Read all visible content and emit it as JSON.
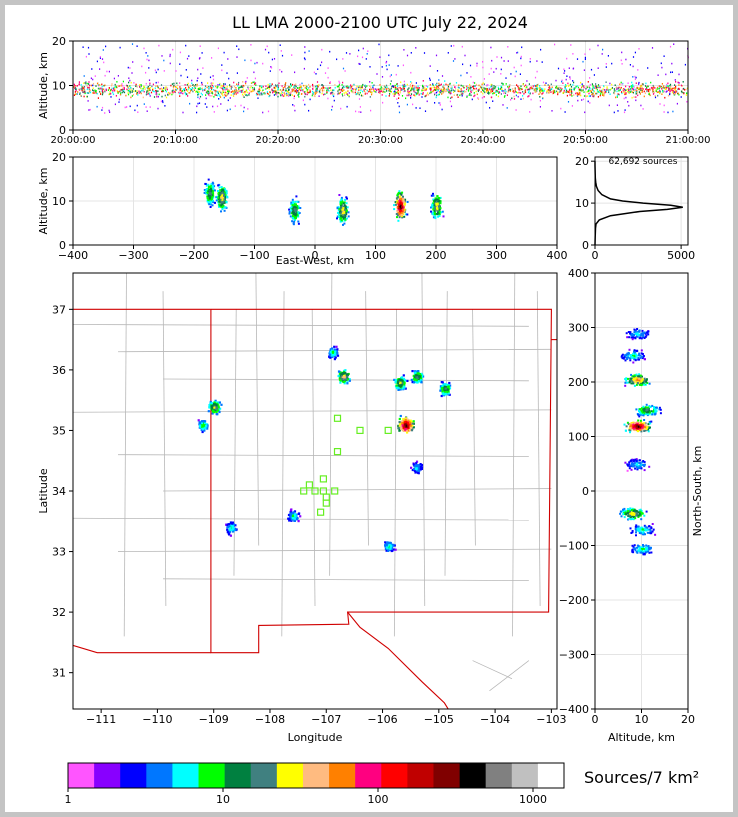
{
  "title": "LL LMA 2000-2100 UTC July 22, 2024",
  "source_count_label": "62,692 sources",
  "colorbar_units": "Sources/7 km²",
  "colors": {
    "map_border": "#d00000",
    "county_lines": "#b8b8b8",
    "station_marker": "#66ee22",
    "frame": "#c4c4c4"
  },
  "chart_data": [
    {
      "id": "time-altitude",
      "type": "heatmap",
      "xlabel": "",
      "ylabel": "Altitude, km",
      "x_ticks": [
        "20:00:00",
        "20:10:00",
        "20:20:00",
        "20:30:00",
        "20:40:00",
        "20:50:00",
        "21:00:00"
      ],
      "xlim_minutes": [
        0,
        60
      ],
      "y_ticks": [
        0,
        10,
        20
      ],
      "ylim": [
        0,
        20
      ],
      "core_altitude_km": [
        8,
        11
      ],
      "grid": true
    },
    {
      "id": "eastwest-altitude",
      "type": "heatmap",
      "xlabel": "East-West, km",
      "ylabel": "Altitude, km",
      "x_ticks": [
        -400,
        -300,
        -200,
        -100,
        0,
        100,
        200,
        300,
        400
      ],
      "xlim": [
        -400,
        400
      ],
      "y_ticks": [
        0,
        10,
        20
      ],
      "ylim": [
        0,
        20
      ],
      "clusters": [
        {
          "x": -175,
          "alt": 12,
          "level": 0.5
        },
        {
          "x": -155,
          "alt": 11,
          "level": 0.6
        },
        {
          "x": -35,
          "alt": 8,
          "level": 0.5
        },
        {
          "x": 45,
          "alt": 8,
          "level": 0.6
        },
        {
          "x": 140,
          "alt": 9,
          "level": 1.0
        },
        {
          "x": 200,
          "alt": 9,
          "level": 0.6
        }
      ],
      "grid": true
    },
    {
      "id": "altitude-histogram",
      "type": "line",
      "xlabel": "",
      "ylabel": "",
      "x_ticks": [
        0,
        5000
      ],
      "xlim": [
        0,
        5400
      ],
      "y_ticks": [
        0,
        10,
        20
      ],
      "ylim": [
        0,
        21
      ],
      "altitude_km": [
        0,
        2,
        4,
        5,
        6,
        7,
        8,
        8.5,
        9,
        9.5,
        10,
        10.5,
        11,
        12,
        13,
        14,
        15,
        16,
        17,
        18,
        19,
        20
      ],
      "sources": [
        0,
        10,
        30,
        60,
        250,
        900,
        2600,
        4200,
        5100,
        4400,
        2800,
        1600,
        900,
        400,
        180,
        80,
        40,
        20,
        10,
        5,
        2,
        0
      ],
      "grid": true
    },
    {
      "id": "plan-view",
      "type": "heatmap",
      "xlabel": "Longitude",
      "ylabel": "Latitude",
      "x_ticks": [
        -111,
        -110,
        -109,
        -108,
        -107,
        -106,
        -105,
        -104,
        -103
      ],
      "xlim": [
        -111.5,
        -102.9
      ],
      "y_ticks": [
        31,
        32,
        33,
        34,
        35,
        36,
        37
      ],
      "ylim": [
        30.4,
        37.6
      ],
      "clusters": [
        {
          "lon": -109.0,
          "lat": 35.4,
          "level": 0.55
        },
        {
          "lon": -109.2,
          "lat": 35.1,
          "level": 0.4
        },
        {
          "lon": -108.7,
          "lat": 33.4,
          "level": 0.35
        },
        {
          "lon": -107.6,
          "lat": 33.6,
          "level": 0.35
        },
        {
          "lon": -106.7,
          "lat": 35.9,
          "level": 0.6
        },
        {
          "lon": -106.9,
          "lat": 36.3,
          "level": 0.35
        },
        {
          "lon": -105.6,
          "lat": 35.1,
          "level": 1.0
        },
        {
          "lon": -105.7,
          "lat": 35.8,
          "level": 0.55
        },
        {
          "lon": -105.4,
          "lat": 35.9,
          "level": 0.5
        },
        {
          "lon": -104.9,
          "lat": 35.7,
          "level": 0.5
        },
        {
          "lon": -105.9,
          "lat": 33.1,
          "level": 0.35
        },
        {
          "lon": -105.4,
          "lat": 34.4,
          "level": 0.3
        }
      ],
      "stations": [
        {
          "lon": -106.8,
          "lat": 35.2
        },
        {
          "lon": -106.4,
          "lat": 35.0
        },
        {
          "lon": -105.9,
          "lat": 35.0
        },
        {
          "lon": -106.8,
          "lat": 34.65
        },
        {
          "lon": -107.05,
          "lat": 34.2
        },
        {
          "lon": -107.3,
          "lat": 34.1
        },
        {
          "lon": -107.4,
          "lat": 34.0
        },
        {
          "lon": -107.2,
          "lat": 34.0
        },
        {
          "lon": -107.05,
          "lat": 34.0
        },
        {
          "lon": -106.85,
          "lat": 34.0
        },
        {
          "lon": -107.0,
          "lat": 33.8
        },
        {
          "lon": -107.1,
          "lat": 33.65
        },
        {
          "lon": -107.0,
          "lat": 33.9
        }
      ],
      "grid": false
    },
    {
      "id": "altitude-northsouth",
      "type": "heatmap",
      "xlabel": "Altitude, km",
      "ylabel": "North-South, km",
      "x_ticks": [
        0,
        10,
        20
      ],
      "xlim": [
        0,
        20
      ],
      "y_ticks": [
        -400,
        -300,
        -200,
        -100,
        0,
        100,
        200,
        300,
        400
      ],
      "ylim": [
        -400,
        400
      ],
      "clusters": [
        {
          "y": 290,
          "alt": 9,
          "level": 0.3
        },
        {
          "y": 250,
          "alt": 8,
          "level": 0.35
        },
        {
          "y": 205,
          "alt": 9,
          "level": 0.7
        },
        {
          "y": 150,
          "alt": 11,
          "level": 0.5
        },
        {
          "y": 120,
          "alt": 9,
          "level": 1.0
        },
        {
          "y": 50,
          "alt": 9,
          "level": 0.3
        },
        {
          "y": -40,
          "alt": 8,
          "level": 0.6
        },
        {
          "y": -70,
          "alt": 10,
          "level": 0.35
        },
        {
          "y": -105,
          "alt": 10,
          "level": 0.35
        }
      ],
      "grid": true
    },
    {
      "id": "colorbar",
      "type": "heatmap",
      "scale": "log",
      "range": [
        1,
        1000
      ],
      "tick_labels": [
        "1",
        "10",
        "100",
        "1000"
      ],
      "tick_values": [
        1,
        10,
        100,
        1000
      ],
      "colors": [
        "#ff55ff",
        "#8800ff",
        "#0000ff",
        "#0077ff",
        "#00ffff",
        "#00ff00",
        "#008040",
        "#408080",
        "#ffff00",
        "#ffbb80",
        "#ff8000",
        "#ff0080",
        "#ff0000",
        "#c00000",
        "#800000",
        "#000000",
        "#808080",
        "#c0c0c0",
        "#ffffff"
      ]
    }
  ]
}
